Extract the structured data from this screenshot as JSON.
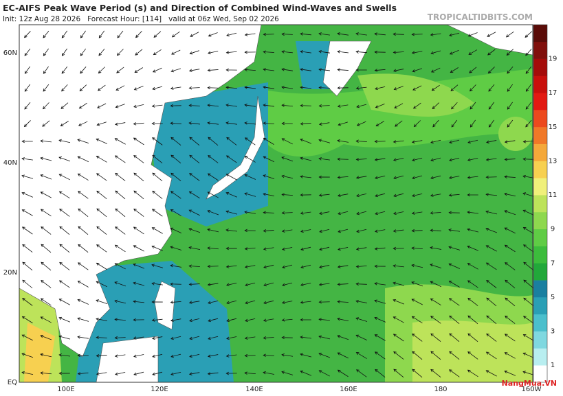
{
  "header": {
    "title": "EC-AIFS Peak Wave Period (s) and Direction of Combined Wind-Waves and Swells",
    "subtitle": "Init: 12z Aug 28 2026   Forecast Hour: [114]   valid at 06z Wed, Sep 02 2026",
    "source": "TROPICALTIDBITS.COM"
  },
  "map": {
    "lat_labels": [
      "60N",
      "40N",
      "20N",
      "EQ"
    ],
    "lon_labels": [
      "100E",
      "120E",
      "140E",
      "160E",
      "180",
      "160W"
    ]
  },
  "colorbar": {
    "labels": [
      1,
      3,
      5,
      7,
      9,
      11,
      13,
      15,
      17,
      19
    ],
    "colors": [
      "#ffffff",
      "#b8eef0",
      "#7fd8e0",
      "#4bbfcc",
      "#2a9fb5",
      "#1a7fa0",
      "#22a83a",
      "#3cbc3c",
      "#5fcc45",
      "#8ed84e",
      "#bde35a",
      "#f0f07a",
      "#f7d050",
      "#f4a83a",
      "#f07828",
      "#ec4a1e",
      "#e21a12",
      "#c8100c",
      "#a40c0a",
      "#80100c",
      "#5a0c08"
    ]
  },
  "watermark": "NangMua.VN"
}
